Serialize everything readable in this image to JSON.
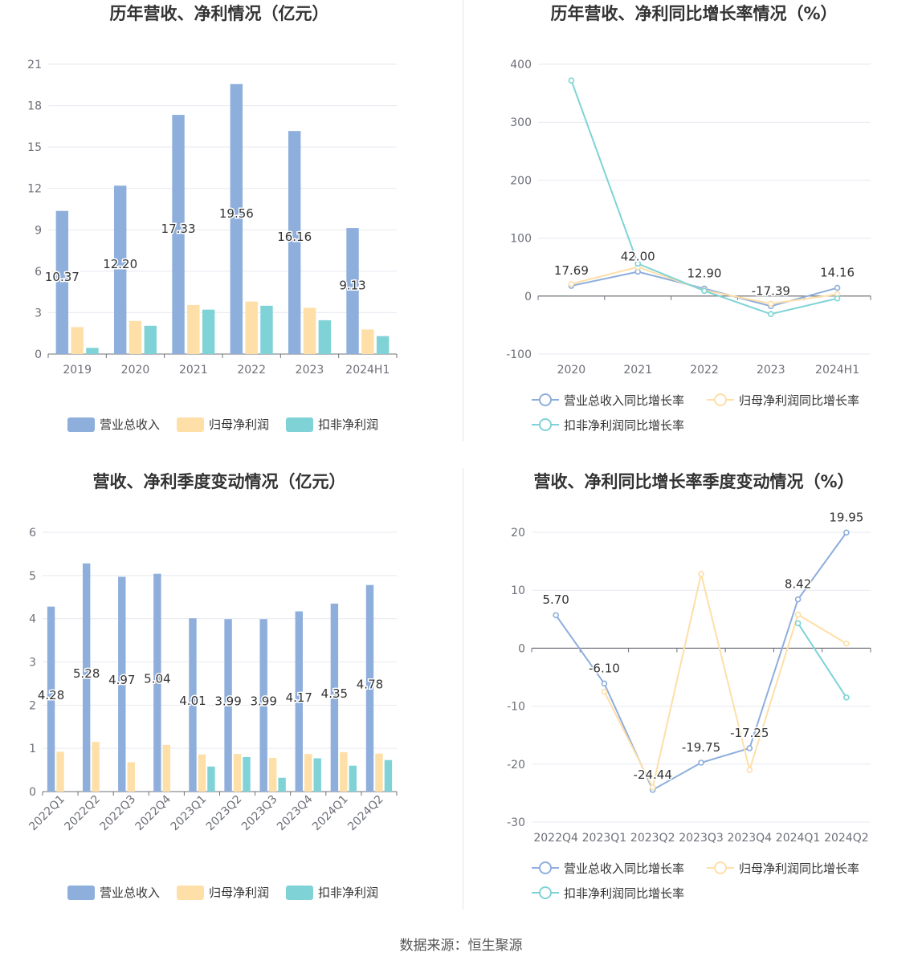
{
  "source_label": "数据来源：恒生聚源",
  "chart_data": [
    {
      "type": "bar",
      "title": "历年营收、净利情况（亿元）",
      "categories": [
        "2019",
        "2020",
        "2021",
        "2022",
        "2023",
        "2024H1"
      ],
      "ylim": [
        0,
        21
      ],
      "yticks": [
        0,
        3,
        6,
        9,
        12,
        15,
        18,
        21
      ],
      "grid": true,
      "legend_position": "bottom",
      "series": [
        {
          "name": "营业总收入",
          "color": "#8eaedc",
          "values": [
            10.37,
            12.2,
            17.33,
            19.56,
            16.16,
            9.13
          ],
          "labels": [
            "10.37",
            "12.20",
            "17.33",
            "19.56",
            "16.16",
            "9.13"
          ]
        },
        {
          "name": "归母净利润",
          "color": "#fedfa8",
          "values": [
            1.95,
            2.4,
            3.55,
            3.8,
            3.35,
            1.78
          ]
        },
        {
          "name": "扣非净利润",
          "color": "#7fd3d6",
          "values": [
            0.45,
            2.05,
            3.22,
            3.5,
            2.45,
            1.3
          ]
        }
      ]
    },
    {
      "type": "line",
      "title": "历年营收、净利同比增长率情况（%）",
      "categories": [
        "2020",
        "2021",
        "2022",
        "2023",
        "2024H1"
      ],
      "ylim": [
        -100,
        400
      ],
      "yticks": [
        -100,
        0,
        100,
        200,
        300,
        400
      ],
      "grid": true,
      "legend_position": "bottom",
      "series": [
        {
          "name": "营业总收入同比增长率",
          "color": "#8eaedc",
          "values": [
            17.69,
            42.0,
            12.9,
            -17.39,
            14.16
          ],
          "labels": [
            "17.69",
            "42.00",
            "12.90",
            "-17.39",
            "14.16"
          ]
        },
        {
          "name": "归母净利润同比增长率",
          "color": "#fedfa8",
          "values": [
            21,
            50,
            10,
            -13,
            3
          ]
        },
        {
          "name": "扣非净利润同比增长率",
          "color": "#7fd3d6",
          "values": [
            372,
            56,
            9,
            -31,
            -4
          ]
        }
      ]
    },
    {
      "type": "bar",
      "title": "营收、净利季度变动情况（亿元）",
      "categories": [
        "2022Q1",
        "2022Q2",
        "2022Q3",
        "2022Q4",
        "2023Q1",
        "2023Q2",
        "2023Q3",
        "2023Q4",
        "2024Q1",
        "2024Q2"
      ],
      "ylim": [
        0,
        6
      ],
      "yticks": [
        0,
        1,
        2,
        3,
        4,
        5,
        6
      ],
      "grid": true,
      "legend_position": "bottom",
      "series": [
        {
          "name": "营业总收入",
          "color": "#8eaedc",
          "values": [
            4.28,
            5.28,
            4.97,
            5.04,
            4.01,
            3.99,
            3.99,
            4.17,
            4.35,
            4.78
          ],
          "labels": [
            "4.28",
            "5.28",
            "4.97",
            "5.04",
            "4.01",
            "3.99",
            "3.99",
            "4.17",
            "4.35",
            "4.78"
          ]
        },
        {
          "name": "归母净利润",
          "color": "#fedfa8",
          "values": [
            0.92,
            1.15,
            0.68,
            1.08,
            0.86,
            0.87,
            0.78,
            0.87,
            0.91,
            0.88
          ]
        },
        {
          "name": "扣非净利润",
          "color": "#7fd3d6",
          "values": [
            null,
            null,
            null,
            null,
            0.58,
            0.8,
            0.32,
            0.77,
            0.6,
            0.73
          ]
        }
      ]
    },
    {
      "type": "line",
      "title": "营收、净利同比增长率季度变动情况（%）",
      "categories": [
        "2022Q4",
        "2023Q1",
        "2023Q2",
        "2023Q3",
        "2023Q4",
        "2024Q1",
        "2024Q2"
      ],
      "ylim": [
        -30,
        20
      ],
      "yticks": [
        -30,
        -20,
        -10,
        0,
        10,
        20
      ],
      "grid": true,
      "legend_position": "bottom",
      "series": [
        {
          "name": "营业总收入同比增长率",
          "color": "#8eaedc",
          "values": [
            5.7,
            -6.1,
            -24.44,
            -19.75,
            -17.25,
            8.42,
            19.95
          ],
          "labels": [
            "5.70",
            "-6.10",
            "-24.44",
            "-19.75",
            "-17.25",
            "8.42",
            "19.95"
          ]
        },
        {
          "name": "归母净利润同比增长率",
          "color": "#fedfa8",
          "values": [
            null,
            -7.5,
            -24,
            12.8,
            -21,
            5.8,
            0.8
          ]
        },
        {
          "name": "扣非净利润同比增长率",
          "color": "#7fd3d6",
          "values": [
            null,
            null,
            null,
            null,
            null,
            4.3,
            -8.5
          ]
        }
      ]
    }
  ]
}
